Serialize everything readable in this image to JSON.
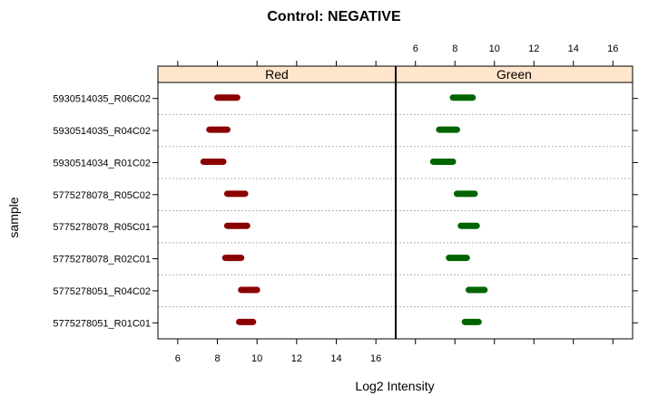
{
  "chart_data": {
    "type": "box-strip",
    "title": "Control: NEGATIVE",
    "xlabel": "Log2 Intensity",
    "ylabel": "sample",
    "xlim": [
      5,
      17
    ],
    "x_ticks": [
      6,
      8,
      10,
      12,
      14,
      16
    ],
    "categories": [
      "5930514035_R06C02",
      "5930514035_R04C02",
      "5930514034_R01C02",
      "5775278078_R05C02",
      "5775278078_R05C01",
      "5775278078_R02C01",
      "5775278051_R04C02",
      "5775278051_R01C01"
    ],
    "panels": [
      {
        "name": "Red",
        "color": "#8b0000",
        "ranges": [
          [
            8.0,
            9.0
          ],
          [
            7.6,
            8.5
          ],
          [
            7.3,
            8.3
          ],
          [
            8.5,
            9.4
          ],
          [
            8.5,
            9.5
          ],
          [
            8.4,
            9.2
          ],
          [
            9.2,
            10.0
          ],
          [
            9.1,
            9.8
          ]
        ]
      },
      {
        "name": "Green",
        "color": "#006400",
        "ranges": [
          [
            7.9,
            8.9
          ],
          [
            7.2,
            8.1
          ],
          [
            6.9,
            7.9
          ],
          [
            8.1,
            9.0
          ],
          [
            8.3,
            9.1
          ],
          [
            7.7,
            8.6
          ],
          [
            8.7,
            9.5
          ],
          [
            8.5,
            9.2
          ]
        ]
      }
    ],
    "strip_color": "#ffe5cc",
    "grid": "dotted-horizontal"
  }
}
